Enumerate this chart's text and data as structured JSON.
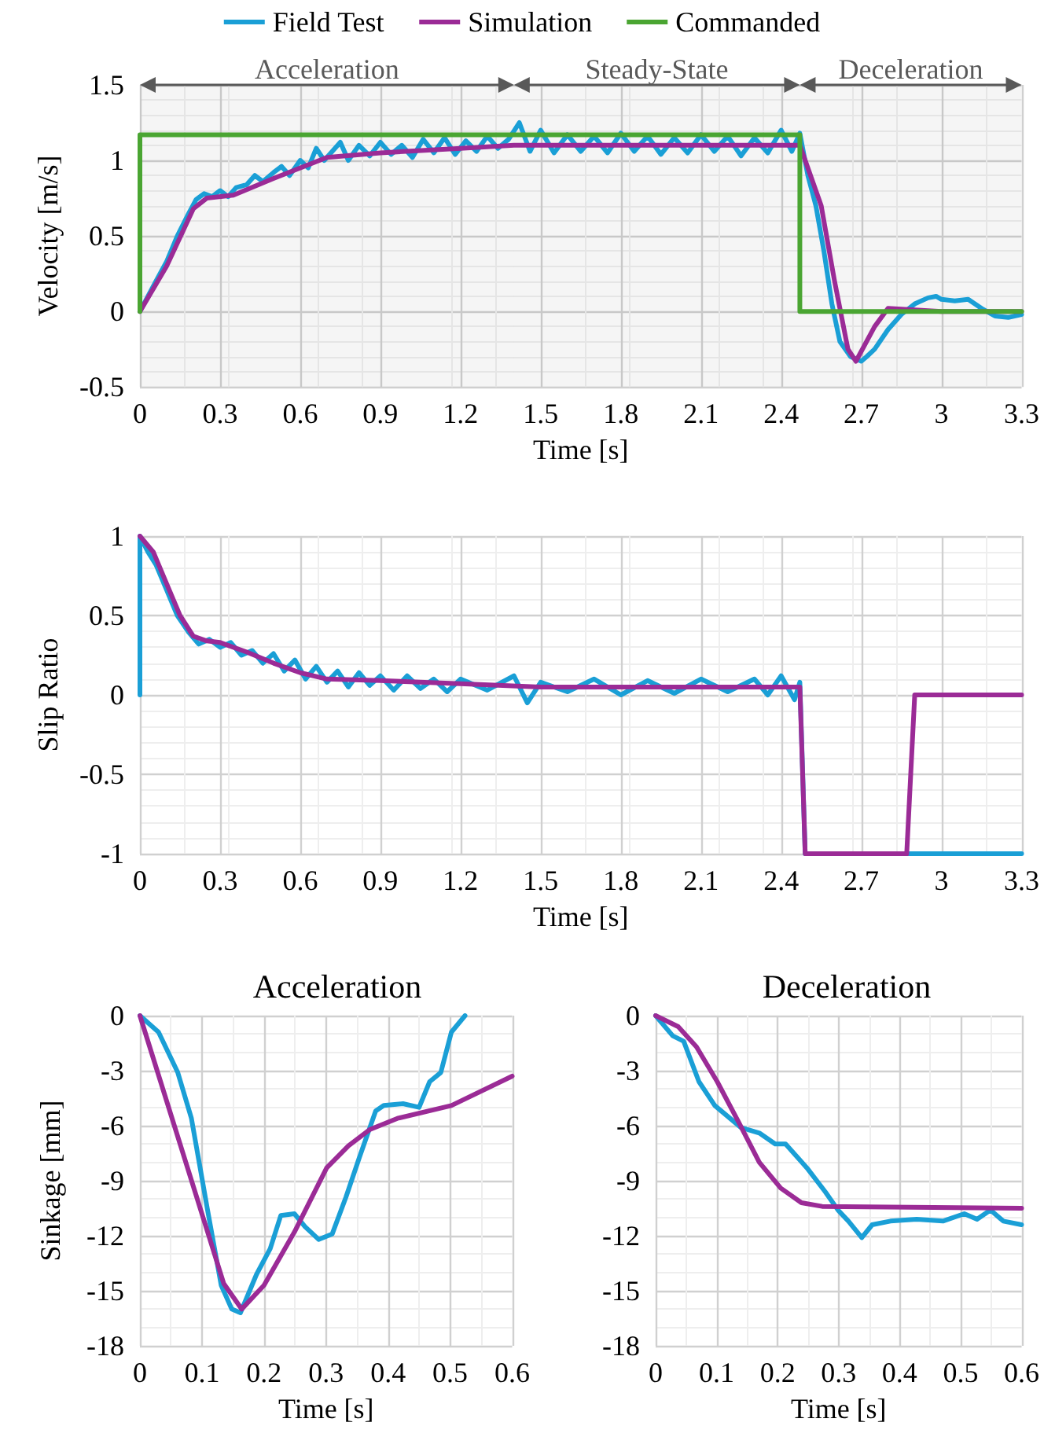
{
  "chart_data": [
    {
      "type": "line",
      "xlabel": "Time [s]",
      "ylabel": "Velocity [m/s]",
      "xlim": [
        0,
        3.3
      ],
      "ylim": [
        -0.5,
        1.5
      ],
      "xticks": [
        0,
        0.3,
        0.6,
        0.9,
        1.2,
        1.5,
        1.8,
        2.1,
        2.4,
        2.7,
        3,
        3.3
      ],
      "yticks": [
        -0.5,
        0,
        0.5,
        1,
        1.5
      ],
      "grid": true,
      "legend": "top",
      "marker": "none",
      "line_style": "solid",
      "bands": [
        {
          "axis": "x",
          "from": 0,
          "to": 1.4,
          "label": "Acceleration",
          "color": "#595959"
        },
        {
          "axis": "x",
          "from": 1.4,
          "to": 2.47,
          "label": "Steady-State",
          "color": "#595959"
        },
        {
          "axis": "x",
          "from": 2.47,
          "to": 3.3,
          "label": "Deceleration",
          "color": "#595959"
        }
      ],
      "series": [
        {
          "name": "Field Test",
          "color": "#1a9fd6",
          "x": [
            0,
            0.03,
            0.06,
            0.1,
            0.14,
            0.18,
            0.21,
            0.24,
            0.27,
            0.3,
            0.33,
            0.36,
            0.4,
            0.43,
            0.46,
            0.5,
            0.53,
            0.56,
            0.6,
            0.63,
            0.66,
            0.69,
            0.72,
            0.75,
            0.78,
            0.82,
            0.86,
            0.9,
            0.94,
            0.98,
            1.02,
            1.06,
            1.1,
            1.14,
            1.18,
            1.22,
            1.26,
            1.3,
            1.34,
            1.38,
            1.42,
            1.46,
            1.5,
            1.55,
            1.6,
            1.65,
            1.7,
            1.75,
            1.8,
            1.85,
            1.9,
            1.95,
            2,
            2.05,
            2.1,
            2.15,
            2.2,
            2.25,
            2.3,
            2.35,
            2.4,
            2.44,
            2.47,
            2.5,
            2.53,
            2.56,
            2.59,
            2.62,
            2.66,
            2.7,
            2.72,
            2.75,
            2.8,
            2.85,
            2.9,
            2.95,
            2.98,
            3,
            3.05,
            3.1,
            3.15,
            3.2,
            3.25,
            3.3
          ],
          "values": [
            0,
            0.1,
            0.2,
            0.33,
            0.5,
            0.64,
            0.74,
            0.78,
            0.76,
            0.8,
            0.76,
            0.82,
            0.84,
            0.9,
            0.86,
            0.92,
            0.96,
            0.9,
            1,
            0.95,
            1.08,
            1,
            1.06,
            1.12,
            1,
            1.1,
            1.03,
            1.12,
            1.04,
            1.1,
            1.02,
            1.14,
            1.05,
            1.15,
            1.04,
            1.13,
            1.06,
            1.16,
            1.08,
            1.14,
            1.25,
            1.06,
            1.2,
            1.05,
            1.17,
            1.06,
            1.16,
            1.05,
            1.18,
            1.06,
            1.16,
            1.04,
            1.15,
            1.05,
            1.17,
            1.06,
            1.16,
            1.03,
            1.15,
            1.05,
            1.2,
            1.06,
            1.18,
            0.9,
            0.7,
            0.4,
            0.05,
            -0.2,
            -0.3,
            -0.33,
            -0.3,
            -0.25,
            -0.12,
            -0.02,
            0.05,
            0.09,
            0.1,
            0.08,
            0.07,
            0.08,
            0.02,
            -0.03,
            -0.04,
            -0.02
          ]
        },
        {
          "name": "Simulation",
          "color": "#9b2b96",
          "x": [
            0,
            0.1,
            0.2,
            0.25,
            0.35,
            0.5,
            0.7,
            0.9,
            1.2,
            1.4,
            2.47,
            2.55,
            2.6,
            2.65,
            2.68,
            2.75,
            2.8,
            2.9,
            3,
            3.3
          ],
          "values": [
            0,
            0.3,
            0.68,
            0.75,
            0.77,
            0.88,
            1.02,
            1.05,
            1.08,
            1.1,
            1.1,
            0.7,
            0.2,
            -0.25,
            -0.33,
            -0.1,
            0.02,
            0.01,
            0,
            0
          ]
        },
        {
          "name": "Commanded",
          "color": "#4aa532",
          "x": [
            0,
            0,
            2.47,
            2.47,
            3.3
          ],
          "values": [
            0,
            1.17,
            1.17,
            0,
            0
          ]
        }
      ]
    },
    {
      "type": "line",
      "xlabel": "Time [s]",
      "ylabel": "Slip Ratio",
      "xlim": [
        0,
        3.3
      ],
      "ylim": [
        -1,
        1
      ],
      "xticks": [
        0,
        0.3,
        0.6,
        0.9,
        1.2,
        1.5,
        1.8,
        2.1,
        2.4,
        2.7,
        3,
        3.3
      ],
      "yticks": [
        -1,
        -0.5,
        0,
        0.5,
        1
      ],
      "grid": true,
      "marker": "none",
      "line_style": "solid",
      "series": [
        {
          "color": "#1a9fd6",
          "x": [
            0,
            0,
            0.03,
            0.06,
            0.1,
            0.14,
            0.18,
            0.22,
            0.26,
            0.3,
            0.34,
            0.38,
            0.42,
            0.46,
            0.5,
            0.54,
            0.58,
            0.62,
            0.66,
            0.7,
            0.74,
            0.78,
            0.82,
            0.86,
            0.9,
            0.95,
            1,
            1.05,
            1.1,
            1.15,
            1.2,
            1.3,
            1.4,
            1.45,
            1.5,
            1.6,
            1.7,
            1.8,
            1.9,
            2,
            2.1,
            2.2,
            2.3,
            2.35,
            2.4,
            2.45,
            2.47,
            2.49,
            3.3
          ],
          "values": [
            0,
            1,
            0.9,
            0.82,
            0.66,
            0.5,
            0.4,
            0.32,
            0.35,
            0.3,
            0.33,
            0.25,
            0.28,
            0.2,
            0.26,
            0.15,
            0.22,
            0.1,
            0.18,
            0.08,
            0.15,
            0.05,
            0.14,
            0.06,
            0.12,
            0.03,
            0.12,
            0.04,
            0.1,
            0.02,
            0.1,
            0.03,
            0.12,
            -0.05,
            0.08,
            0.02,
            0.1,
            0,
            0.09,
            0.01,
            0.1,
            0.02,
            0.1,
            0,
            0.12,
            -0.03,
            0.08,
            -1,
            -1
          ]
        },
        {
          "color": "#9b2b96",
          "x": [
            0,
            0.05,
            0.1,
            0.15,
            0.2,
            0.25,
            0.3,
            0.4,
            0.5,
            0.6,
            0.7,
            0.9,
            1.2,
            1.5,
            2,
            2.47,
            2.49,
            2.87,
            2.9,
            3.3
          ],
          "values": [
            1,
            0.9,
            0.7,
            0.5,
            0.37,
            0.34,
            0.33,
            0.27,
            0.2,
            0.14,
            0.1,
            0.09,
            0.07,
            0.05,
            0.05,
            0.05,
            -1,
            -1,
            0,
            0
          ]
        }
      ]
    },
    {
      "type": "line",
      "title": "Acceleration",
      "xlabel": "Time [s]",
      "ylabel": "Sinkage [mm]",
      "xlim": [
        0,
        0.6
      ],
      "ylim": [
        -18,
        0
      ],
      "xticks": [
        0,
        0.1,
        0.2,
        0.3,
        0.4,
        0.5,
        0.6
      ],
      "yticks": [
        -18,
        -15,
        -12,
        -9,
        -6,
        -3,
        0
      ],
      "grid": true,
      "marker": "none",
      "line_style": "solid",
      "series": [
        {
          "color": "#1a9fd6",
          "x": [
            0,
            0.03,
            0.061,
            0.083,
            0.109,
            0.131,
            0.148,
            0.162,
            0.188,
            0.21,
            0.227,
            0.249,
            0.266,
            0.288,
            0.31,
            0.332,
            0.354,
            0.38,
            0.393,
            0.424,
            0.45,
            0.467,
            0.485,
            0.502,
            0.524
          ],
          "values": [
            0,
            -0.9,
            -3.1,
            -5.6,
            -10.6,
            -14.7,
            -16,
            -16.2,
            -14.1,
            -12.7,
            -10.9,
            -10.8,
            -11.5,
            -12.2,
            -11.9,
            -9.9,
            -7.7,
            -5.2,
            -4.9,
            -4.8,
            -5,
            -3.6,
            -3.1,
            -0.9,
            0
          ]
        },
        {
          "color": "#9b2b96",
          "x": [
            0,
            0.135,
            0.164,
            0.2,
            0.249,
            0.301,
            0.336,
            0.371,
            0.415,
            0.502,
            0.6
          ],
          "values": [
            0,
            -14.6,
            -16,
            -14.7,
            -11.8,
            -8.3,
            -7.1,
            -6.2,
            -5.6,
            -4.9,
            -3.3
          ]
        }
      ]
    },
    {
      "type": "line",
      "title": "Deceleration",
      "xlabel": "Time [s]",
      "xlim": [
        0,
        0.6
      ],
      "ylim": [
        -18,
        0
      ],
      "xticks": [
        0,
        0.1,
        0.2,
        0.3,
        0.4,
        0.5,
        0.6
      ],
      "yticks": [
        -18,
        -15,
        -12,
        -9,
        -6,
        -3,
        0
      ],
      "grid": true,
      "marker": "none",
      "line_style": "solid",
      "series": [
        {
          "color": "#1a9fd6",
          "x": [
            0,
            0.028,
            0.046,
            0.071,
            0.097,
            0.14,
            0.17,
            0.196,
            0.213,
            0.248,
            0.278,
            0.299,
            0.316,
            0.338,
            0.355,
            0.385,
            0.428,
            0.471,
            0.506,
            0.527,
            0.549,
            0.57,
            0.6
          ],
          "values": [
            0,
            -1.1,
            -1.4,
            -3.6,
            -4.9,
            -6.1,
            -6.4,
            -7,
            -7,
            -8.3,
            -9.6,
            -10.6,
            -11.2,
            -12.1,
            -11.4,
            -11.2,
            -11.1,
            -11.2,
            -10.8,
            -11.1,
            -10.6,
            -11.2,
            -11.4
          ]
        },
        {
          "color": "#9b2b96",
          "x": [
            0,
            0.037,
            0.067,
            0.101,
            0.136,
            0.17,
            0.205,
            0.239,
            0.273,
            0.6
          ],
          "values": [
            0,
            -0.6,
            -1.7,
            -3.6,
            -5.8,
            -8,
            -9.4,
            -10.2,
            -10.4,
            -10.5
          ]
        }
      ]
    }
  ]
}
